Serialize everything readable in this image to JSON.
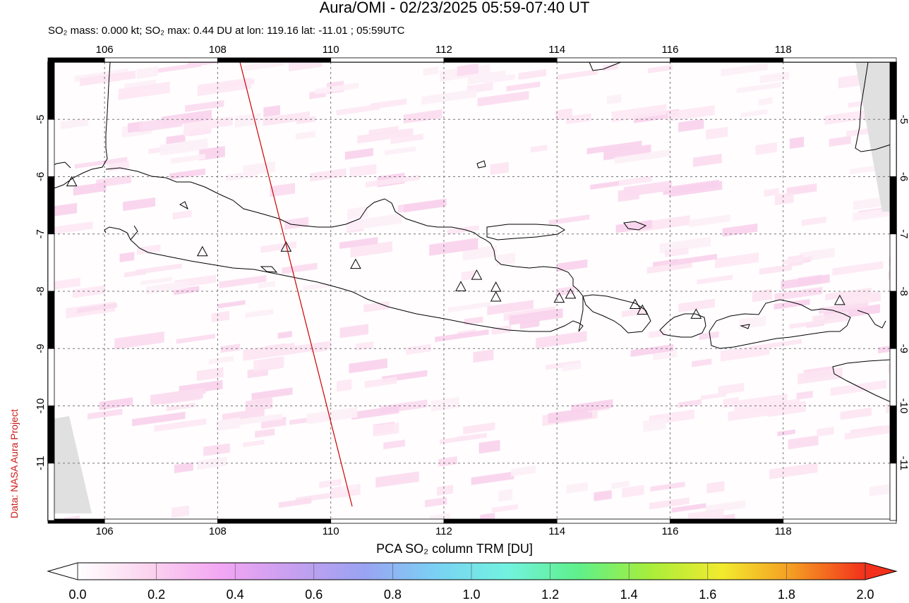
{
  "header": {
    "title": "Aura/OMI - 02/23/2025 05:59-07:40 UT",
    "subtitle": "SO₂ mass: 0.000 kt; SO₂ max: 0.44 DU at lon: 119.16 lat: -11.01 ; 05:59UTC"
  },
  "credit": "Data: NASA Aura Project",
  "map": {
    "lon_range": [
      105,
      120
    ],
    "lat_range": [
      -12,
      -4
    ],
    "lon_ticks": [
      "106",
      "108",
      "110",
      "112",
      "114",
      "116",
      "118"
    ],
    "lat_ticks": [
      "-5",
      "-6",
      "-7",
      "-8",
      "-9",
      "-10",
      "-11"
    ],
    "grid": "dotted",
    "coastline_color": "#000000",
    "swath_edge_color": "#cc0000",
    "no_data_color": "#e0e0e0",
    "volcano_marker": "triangle-icon"
  },
  "colorbar": {
    "title": "PCA SO₂ column TRM [DU]",
    "range": [
      0.0,
      2.0
    ],
    "ticks": [
      "0.0",
      "0.2",
      "0.4",
      "0.6",
      "0.8",
      "1.0",
      "1.2",
      "1.4",
      "1.6",
      "1.8",
      "2.0"
    ],
    "colors": [
      "#ffffff",
      "#fbd3ee",
      "#f3a6f3",
      "#c79ff0",
      "#9aa3f2",
      "#7ad1f4",
      "#72f2e0",
      "#5ff08a",
      "#a8ee3b",
      "#f2ea2e",
      "#f59a23",
      "#f2301b"
    ]
  }
}
